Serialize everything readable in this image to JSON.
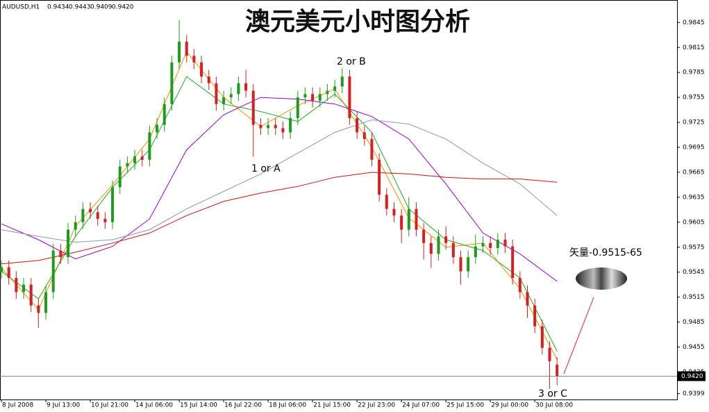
{
  "chart_data": {
    "type": "candlestick",
    "title": "澳元美元小时图分析",
    "header": {
      "symbol": "AUDUSD,H1",
      "open": "0.9434",
      "high": "0.9443",
      "low": "0.9409",
      "close": "0.9420"
    },
    "annotations": [
      "2 or B",
      "1 or A",
      "3 or C",
      "矢量-0.9515-65"
    ],
    "up_color": "#1f9a1f",
    "down_color": "#d42020",
    "open": [
      0.9545,
      0.9551,
      0.9538,
      0.9521,
      0.953,
      0.9505,
      0.9496,
      0.9521,
      0.9571,
      0.9563,
      0.9596,
      0.9605,
      0.9621,
      0.9617,
      0.9609,
      0.9605,
      0.9647,
      0.9672,
      0.9676,
      0.9684,
      0.968,
      0.9713,
      0.9722,
      0.9747,
      0.9797,
      0.9822,
      0.9805,
      0.9797,
      0.978,
      0.9772,
      0.9747,
      0.9755,
      0.9759,
      0.9772,
      0.9763,
      0.9722,
      0.9718,
      0.9722,
      0.9718,
      0.9713,
      0.973,
      0.9755,
      0.9759,
      0.9751,
      0.9759,
      0.9763,
      0.9768,
      0.978,
      0.973,
      0.9713,
      0.9705,
      0.968,
      0.9638,
      0.9621,
      0.9613,
      0.9596,
      0.9621,
      0.9596,
      0.958,
      0.9567,
      0.9588,
      0.958,
      0.9563,
      0.9546,
      0.9563,
      0.9576,
      0.958,
      0.9574,
      0.9584,
      0.9576,
      0.9538,
      0.9521,
      0.9505,
      0.948,
      0.9454,
      0.9434
    ],
    "high": [
      0.9559,
      0.9559,
      0.9546,
      0.9538,
      0.9538,
      0.9513,
      0.9529,
      0.9579,
      0.9579,
      0.9604,
      0.9613,
      0.9629,
      0.9629,
      0.9625,
      0.9617,
      0.9655,
      0.968,
      0.9684,
      0.9692,
      0.9692,
      0.9721,
      0.973,
      0.9755,
      0.9805,
      0.9848,
      0.983,
      0.9813,
      0.9805,
      0.9788,
      0.978,
      0.9763,
      0.9767,
      0.978,
      0.9788,
      0.9771,
      0.973,
      0.973,
      0.973,
      0.9726,
      0.9738,
      0.9763,
      0.9767,
      0.9767,
      0.9767,
      0.9771,
      0.9776,
      0.979,
      0.9788,
      0.9738,
      0.9721,
      0.9713,
      0.9688,
      0.9646,
      0.9629,
      0.9621,
      0.9635,
      0.9629,
      0.9604,
      0.9588,
      0.9596,
      0.96,
      0.9588,
      0.9571,
      0.9571,
      0.959,
      0.9588,
      0.9588,
      0.9592,
      0.9592,
      0.9584,
      0.9546,
      0.9529,
      0.9513,
      0.9488,
      0.9462,
      0.9443
    ],
    "low": [
      0.9537,
      0.953,
      0.9513,
      0.9513,
      0.9497,
      0.9478,
      0.9488,
      0.9513,
      0.9555,
      0.9555,
      0.9588,
      0.9597,
      0.9609,
      0.9601,
      0.9597,
      0.9597,
      0.9639,
      0.9664,
      0.9668,
      0.9672,
      0.9672,
      0.9705,
      0.9714,
      0.9739,
      0.9789,
      0.9797,
      0.9789,
      0.9772,
      0.9764,
      0.9739,
      0.9739,
      0.9747,
      0.9751,
      0.9755,
      0.9684,
      0.971,
      0.971,
      0.971,
      0.9705,
      0.9705,
      0.9722,
      0.9747,
      0.9743,
      0.9743,
      0.9751,
      0.9755,
      0.976,
      0.9722,
      0.9705,
      0.9697,
      0.9672,
      0.963,
      0.9613,
      0.9605,
      0.958,
      0.9588,
      0.9588,
      0.956,
      0.955,
      0.9559,
      0.9572,
      0.9555,
      0.953,
      0.9538,
      0.9555,
      0.9568,
      0.9566,
      0.9566,
      0.9568,
      0.953,
      0.9513,
      0.949,
      0.9472,
      0.9446,
      0.9405,
      0.9409
    ],
    "close": [
      0.9551,
      0.9538,
      0.9521,
      0.953,
      0.9505,
      0.9496,
      0.9521,
      0.9571,
      0.9563,
      0.9596,
      0.9605,
      0.9621,
      0.9617,
      0.9609,
      0.9605,
      0.9647,
      0.9672,
      0.9676,
      0.9684,
      0.968,
      0.9713,
      0.9722,
      0.9747,
      0.9797,
      0.9822,
      0.9805,
      0.9797,
      0.978,
      0.9772,
      0.9747,
      0.9755,
      0.9759,
      0.9772,
      0.9763,
      0.9722,
      0.9718,
      0.9722,
      0.9718,
      0.9713,
      0.973,
      0.9755,
      0.9759,
      0.9751,
      0.9759,
      0.9763,
      0.9768,
      0.978,
      0.973,
      0.9713,
      0.9705,
      0.968,
      0.9638,
      0.9621,
      0.9613,
      0.9596,
      0.9621,
      0.9596,
      0.958,
      0.9567,
      0.9588,
      0.958,
      0.9563,
      0.9546,
      0.9563,
      0.9576,
      0.958,
      0.9574,
      0.9584,
      0.9576,
      0.9538,
      0.9521,
      0.9505,
      0.948,
      0.9454,
      0.9438,
      0.942
    ],
    "moving_averages": {
      "x": [
        0,
        5,
        10,
        15,
        20,
        25,
        30,
        35,
        40,
        45,
        50,
        55,
        60,
        65,
        70,
        75
      ],
      "series": [
        {
          "color": "#ff8c00",
          "values": [
            0.955,
            0.95,
            0.96,
            0.965,
            0.9705,
            0.981,
            0.9755,
            0.972,
            0.9745,
            0.9765,
            0.9695,
            0.961,
            0.9575,
            0.958,
            0.9525,
            0.944
          ]
        },
        {
          "color": "#22aa22",
          "values": [
            0.9546,
            0.9513,
            0.9588,
            0.9647,
            0.9692,
            0.978,
            0.9747,
            0.9738,
            0.9726,
            0.9759,
            0.9713,
            0.9621,
            0.9584,
            0.9571,
            0.9538,
            0.945
          ]
        },
        {
          "color": "#9400d3",
          "values": [
            0.9603,
            0.9584,
            0.9561,
            0.9576,
            0.9609,
            0.9692,
            0.9734,
            0.9755,
            0.9753,
            0.9747,
            0.9732,
            0.9705,
            0.9651,
            0.9592,
            0.9567,
            0.9534
          ]
        },
        {
          "color": "#8a9aa6",
          "values": [
            0.9596,
            0.9588,
            0.9581,
            0.9584,
            0.9596,
            0.9621,
            0.9642,
            0.9663,
            0.9688,
            0.9713,
            0.9728,
            0.9723,
            0.9705,
            0.9676,
            0.9651,
            0.9613
          ]
        },
        {
          "color": "#d41010",
          "values": [
            0.9555,
            0.9559,
            0.9569,
            0.958,
            0.9592,
            0.9613,
            0.963,
            0.964,
            0.9648,
            0.9659,
            0.9665,
            0.9663,
            0.9659,
            0.9657,
            0.9657,
            0.9653
          ]
        }
      ]
    },
    "price_line": {
      "value": 0.942,
      "label": "0.9420"
    },
    "xlim": [
      -0.19,
      91.2
    ],
    "ylim": [
      0.9392,
      0.9872
    ],
    "xticks": [
      {
        "value": 0,
        "label": "8 Jul 2008"
      },
      {
        "value": 6,
        "label": "9 Jul 13:00"
      },
      {
        "value": 12,
        "label": "10 Jul 21:00"
      },
      {
        "value": 18,
        "label": "14 Jul 06:00"
      },
      {
        "value": 24,
        "label": "15 Jul 14:00"
      },
      {
        "value": 30,
        "label": "16 Jul 22:00"
      },
      {
        "value": 36,
        "label": "18 Jul 06:00"
      },
      {
        "value": 42,
        "label": "21 Jul 15:00"
      },
      {
        "value": 48,
        "label": "22 Jul 23:00"
      },
      {
        "value": 54,
        "label": "24 Jul 07:00"
      },
      {
        "value": 60,
        "label": "25 Jul 15:00"
      },
      {
        "value": 66,
        "label": "29 Jul 00:00"
      },
      {
        "value": 72,
        "label": "30 Jul 08:00"
      }
    ],
    "yticks": [
      0.9845,
      0.9815,
      0.9785,
      0.9755,
      0.9725,
      0.9695,
      0.9665,
      0.9635,
      0.9605,
      0.9575,
      0.9545,
      0.9515,
      0.9485,
      0.9455,
      0.9425,
      0.9399
    ]
  }
}
